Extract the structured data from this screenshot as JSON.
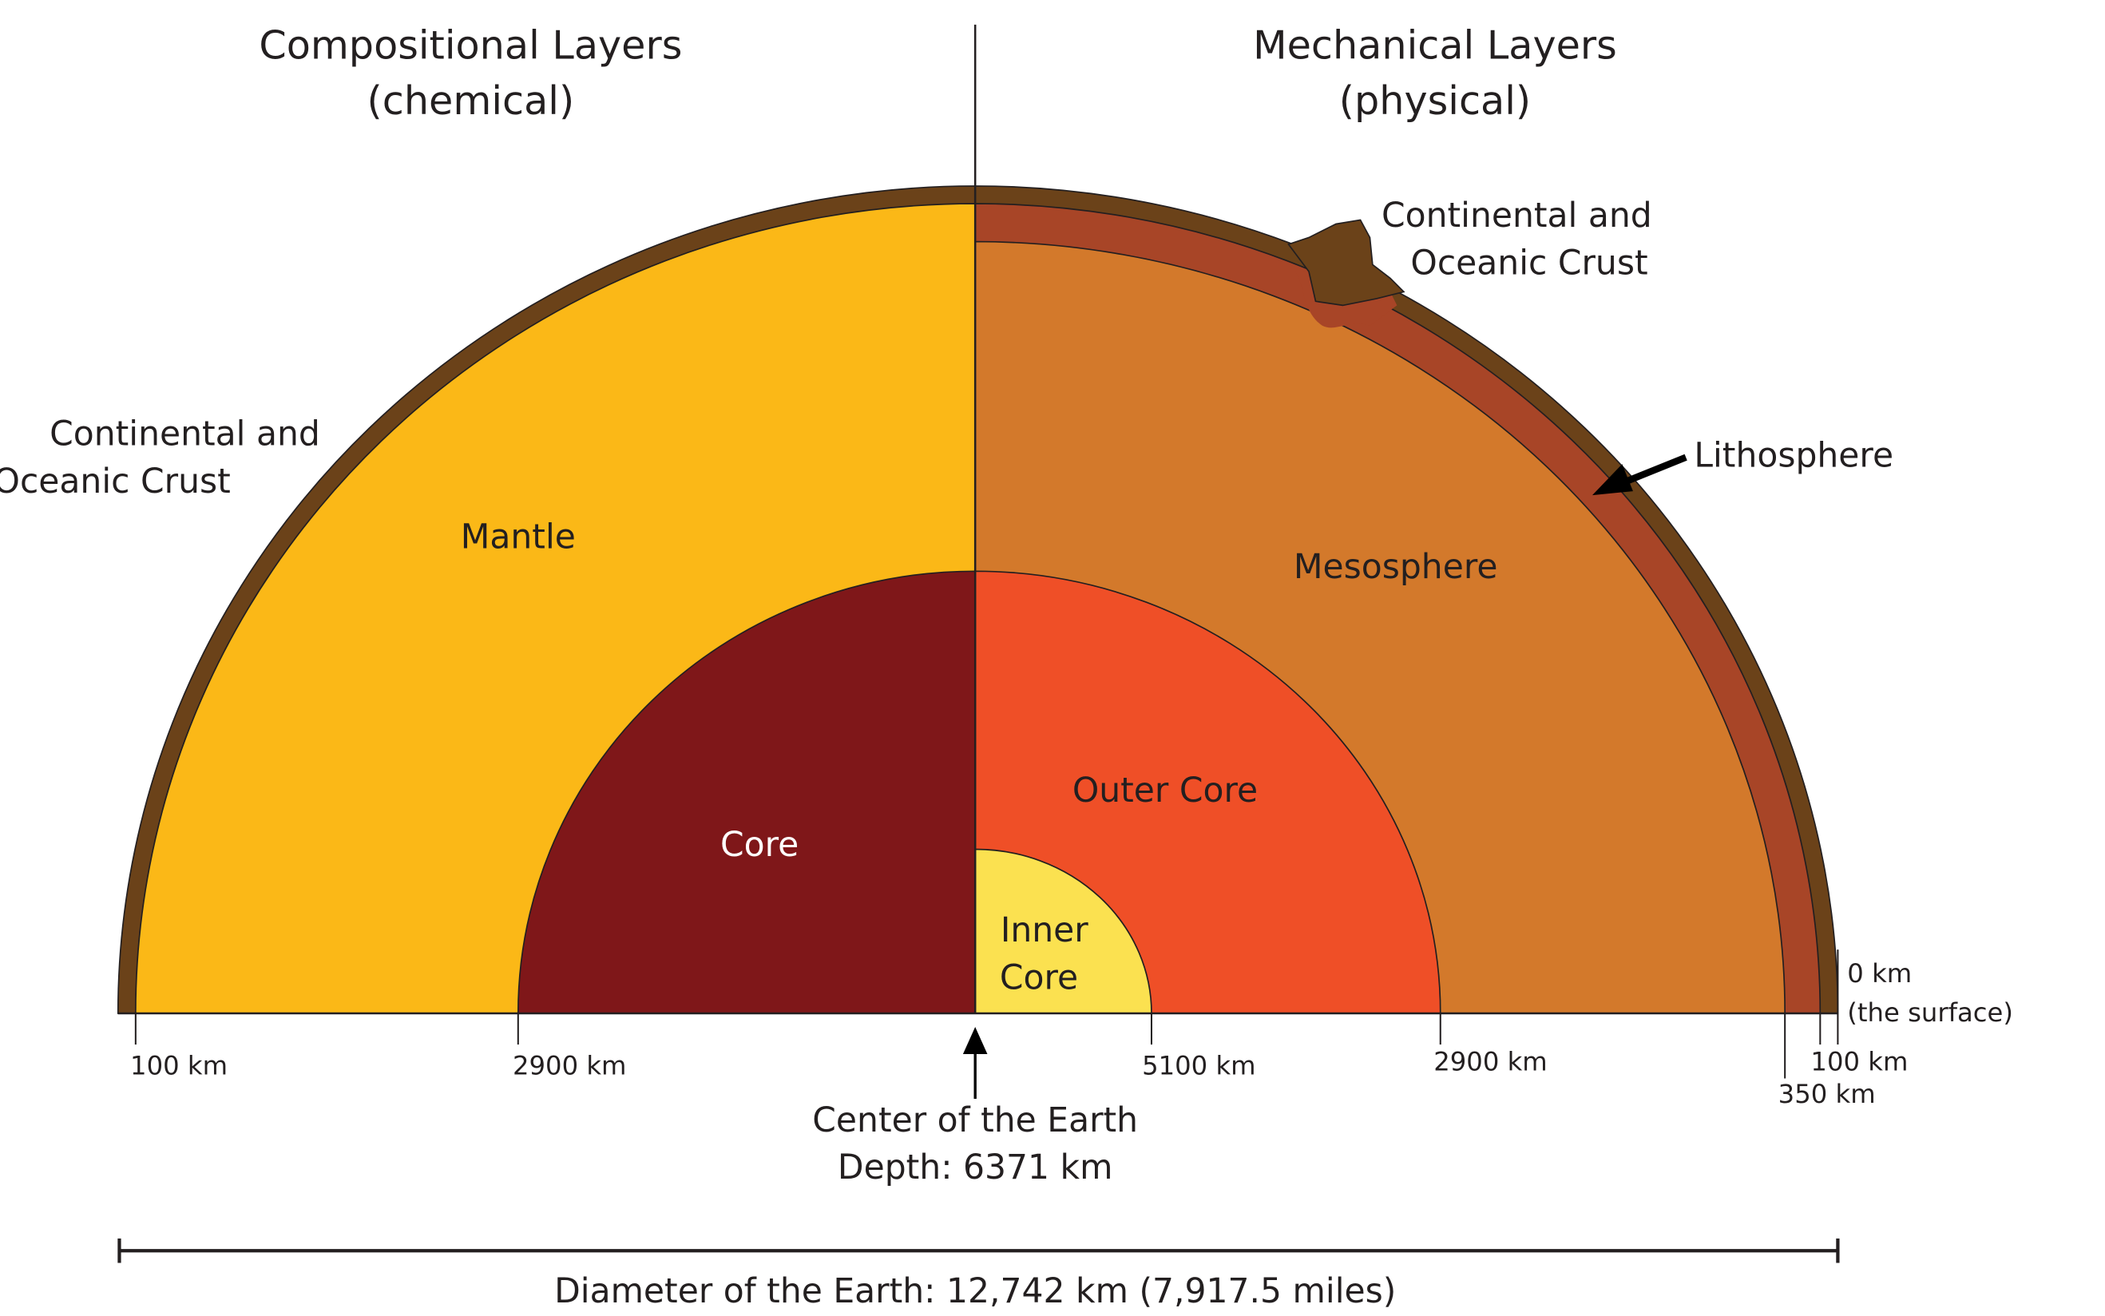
{
  "left_heading": {
    "line1": "Compositional Layers",
    "line2": "(chemical)"
  },
  "right_heading": {
    "line1": "Mechanical Layers",
    "line2": "(physical)"
  },
  "left_layers": {
    "crust": {
      "line1": "Continental and",
      "line2": "Oceanic Crust"
    },
    "mantle": "Mantle",
    "core": "Core"
  },
  "right_layers": {
    "crust": {
      "line1": "Continental and",
      "line2": "Oceanic Crust"
    },
    "lithosphere": "Lithosphere",
    "mesosphere": "Mesosphere",
    "outer_core": "Outer Core",
    "inner_core": {
      "line1": "Inner",
      "line2": "Core"
    }
  },
  "depth_labels": {
    "left_crust": "100 km",
    "left_core": "2900 km",
    "inner_core": "5100 km",
    "outer_core": "2900 km",
    "surface": {
      "line1": "0 km",
      "line2": "(the surface)"
    },
    "crust": "100 km",
    "lithosphere": "350 km"
  },
  "center": {
    "line1": "Center of the Earth",
    "line2": "Depth: 6371 km"
  },
  "diameter": "Diameter of the Earth: 12,742 km (7,917.5 miles)"
}
